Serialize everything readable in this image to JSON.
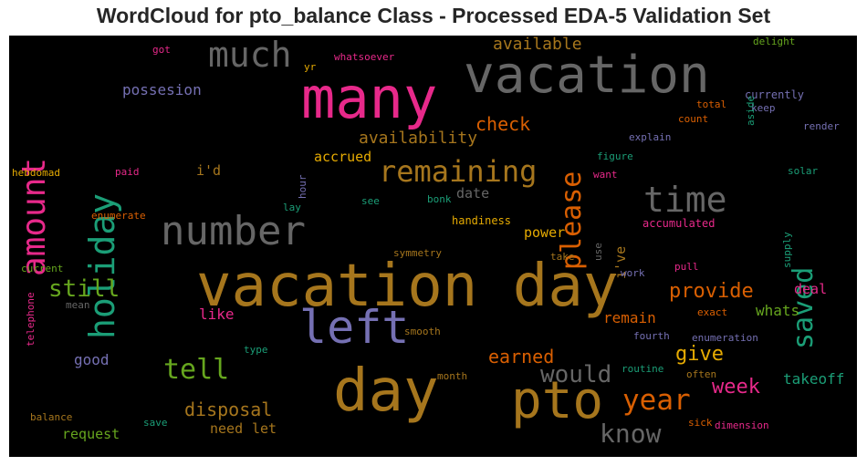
{
  "title": "WordCloud for pto_balance Class - Processed EDA-5 Validation Set",
  "chart_data": {
    "type": "wordcloud",
    "background": "#000000",
    "words": [
      {
        "text": "vacation day",
        "color": "#a6761d",
        "weight": 62
      },
      {
        "text": "day",
        "color": "#a6761d",
        "weight": 62
      },
      {
        "text": "many",
        "color": "#e7298a",
        "weight": 60
      },
      {
        "text": "vacation",
        "color": "#666666",
        "weight": 55
      },
      {
        "text": "pto",
        "color": "#a6761d",
        "weight": 54
      },
      {
        "text": "left",
        "color": "#7570b3",
        "weight": 48
      },
      {
        "text": "number",
        "color": "#666666",
        "weight": 42
      },
      {
        "text": "holiday",
        "color": "#1b9e77",
        "weight": 38
      },
      {
        "text": "time",
        "color": "#666666",
        "weight": 36
      },
      {
        "text": "much",
        "color": "#666666",
        "weight": 36
      },
      {
        "text": "amount",
        "color": "#e7298a",
        "weight": 34
      },
      {
        "text": "remaining",
        "color": "#a6761d",
        "weight": 32
      },
      {
        "text": "please",
        "color": "#d95f02",
        "weight": 30
      },
      {
        "text": "saved",
        "color": "#1b9e77",
        "weight": 30
      },
      {
        "text": "year",
        "color": "#d95f02",
        "weight": 30
      },
      {
        "text": "tell",
        "color": "#66a61e",
        "weight": 28
      },
      {
        "text": "know",
        "color": "#666666",
        "weight": 27
      },
      {
        "text": "still",
        "color": "#66a61e",
        "weight": 24
      },
      {
        "text": "would",
        "color": "#666666",
        "weight": 24
      },
      {
        "text": "week",
        "color": "#e7298a",
        "weight": 22
      },
      {
        "text": "provide",
        "color": "#d95f02",
        "weight": 21
      },
      {
        "text": "give",
        "color": "#e6ab02",
        "weight": 20
      },
      {
        "text": "check",
        "color": "#d95f02",
        "weight": 19
      },
      {
        "text": "earned",
        "color": "#d95f02",
        "weight": 19
      },
      {
        "text": "disposal",
        "color": "#a6761d",
        "weight": 19
      },
      {
        "text": "availability",
        "color": "#a6761d",
        "weight": 17
      },
      {
        "text": "available",
        "color": "#a6761d",
        "weight": 17
      },
      {
        "text": "possesion",
        "color": "#7570b3",
        "weight": 16
      },
      {
        "text": "takeoff",
        "color": "#1b9e77",
        "weight": 16
      },
      {
        "text": "whats",
        "color": "#66a61e",
        "weight": 16
      },
      {
        "text": "remain",
        "color": "#d95f02",
        "weight": 16
      },
      {
        "text": "like",
        "color": "#e7298a",
        "weight": 16
      },
      {
        "text": "good",
        "color": "#7570b3",
        "weight": 16
      },
      {
        "text": "request",
        "color": "#66a61e",
        "weight": 15
      },
      {
        "text": "power",
        "color": "#e6ab02",
        "weight": 15
      },
      {
        "text": "accrued",
        "color": "#e6ab02",
        "weight": 15
      },
      {
        "text": "i'd",
        "color": "#a6761d",
        "weight": 15
      },
      {
        "text": "date",
        "color": "#666666",
        "weight": 15
      },
      {
        "text": "deal",
        "color": "#e7298a",
        "weight": 15
      },
      {
        "text": "i've",
        "color": "#a6761d",
        "weight": 14
      },
      {
        "text": "need",
        "color": "#a6761d",
        "weight": 14
      },
      {
        "text": "let",
        "color": "#a6761d",
        "weight": 14
      },
      {
        "text": "handiness",
        "color": "#e6ab02",
        "weight": 11
      },
      {
        "text": "accumulated",
        "color": "#e7298a",
        "weight": 11
      },
      {
        "text": "currently",
        "color": "#7570b3",
        "weight": 11
      },
      {
        "text": "total",
        "color": "#d95f02",
        "weight": 11
      },
      {
        "text": "count",
        "color": "#d95f02",
        "weight": 11
      },
      {
        "text": "figure",
        "color": "#1b9e77",
        "weight": 11
      },
      {
        "text": "explain",
        "color": "#7570b3",
        "weight": 11
      },
      {
        "text": "render",
        "color": "#7570b3",
        "weight": 11
      },
      {
        "text": "keep",
        "color": "#7570b3",
        "weight": 11
      },
      {
        "text": "aside",
        "color": "#1b9e77",
        "weight": 11
      },
      {
        "text": "delight",
        "color": "#66a61e",
        "weight": 11
      },
      {
        "text": "solar",
        "color": "#1b9e77",
        "weight": 11
      },
      {
        "text": "supply",
        "color": "#1b9e77",
        "weight": 11
      },
      {
        "text": "want",
        "color": "#e7298a",
        "weight": 11
      },
      {
        "text": "hour",
        "color": "#7570b3",
        "weight": 11
      },
      {
        "text": "paid",
        "color": "#e7298a",
        "weight": 11
      },
      {
        "text": "hebdomad",
        "color": "#e6ab02",
        "weight": 11
      },
      {
        "text": "enumerate",
        "color": "#d95f02",
        "weight": 11
      },
      {
        "text": "lay",
        "color": "#1b9e77",
        "weight": 11
      },
      {
        "text": "see",
        "color": "#1b9e77",
        "weight": 11
      },
      {
        "text": "bonk",
        "color": "#1b9e77",
        "weight": 11
      },
      {
        "text": "symmetry",
        "color": "#a6761d",
        "weight": 11
      },
      {
        "text": "take",
        "color": "#a6761d",
        "weight": 11
      },
      {
        "text": "use",
        "color": "#666666",
        "weight": 11
      },
      {
        "text": "work",
        "color": "#7570b3",
        "weight": 11
      },
      {
        "text": "pull",
        "color": "#e7298a",
        "weight": 11
      },
      {
        "text": "current",
        "color": "#66a61e",
        "weight": 11
      },
      {
        "text": "telephone",
        "color": "#e7298a",
        "weight": 11
      },
      {
        "text": "mean",
        "color": "#666666",
        "weight": 11
      },
      {
        "text": "smooth",
        "color": "#a6761d",
        "weight": 11
      },
      {
        "text": "exact",
        "color": "#d95f02",
        "weight": 11
      },
      {
        "text": "enumeration",
        "color": "#7570b3",
        "weight": 11
      },
      {
        "text": "fourth",
        "color": "#7570b3",
        "weight": 11
      },
      {
        "text": "type",
        "color": "#1b9e77",
        "weight": 11
      },
      {
        "text": "routine",
        "color": "#1b9e77",
        "weight": 11
      },
      {
        "text": "often",
        "color": "#a6761d",
        "weight": 11
      },
      {
        "text": "month",
        "color": "#a6761d",
        "weight": 11
      },
      {
        "text": "balance",
        "color": "#a6761d",
        "weight": 11
      },
      {
        "text": "save",
        "color": "#1b9e77",
        "weight": 11
      },
      {
        "text": "sick",
        "color": "#d95f02",
        "weight": 11
      },
      {
        "text": "dimension",
        "color": "#e7298a",
        "weight": 11
      },
      {
        "text": "got",
        "color": "#e7298a",
        "weight": 11
      },
      {
        "text": "yr",
        "color": "#e6ab02",
        "weight": 11
      },
      {
        "text": "whatsoever",
        "color": "#e7298a",
        "weight": 11
      }
    ]
  }
}
